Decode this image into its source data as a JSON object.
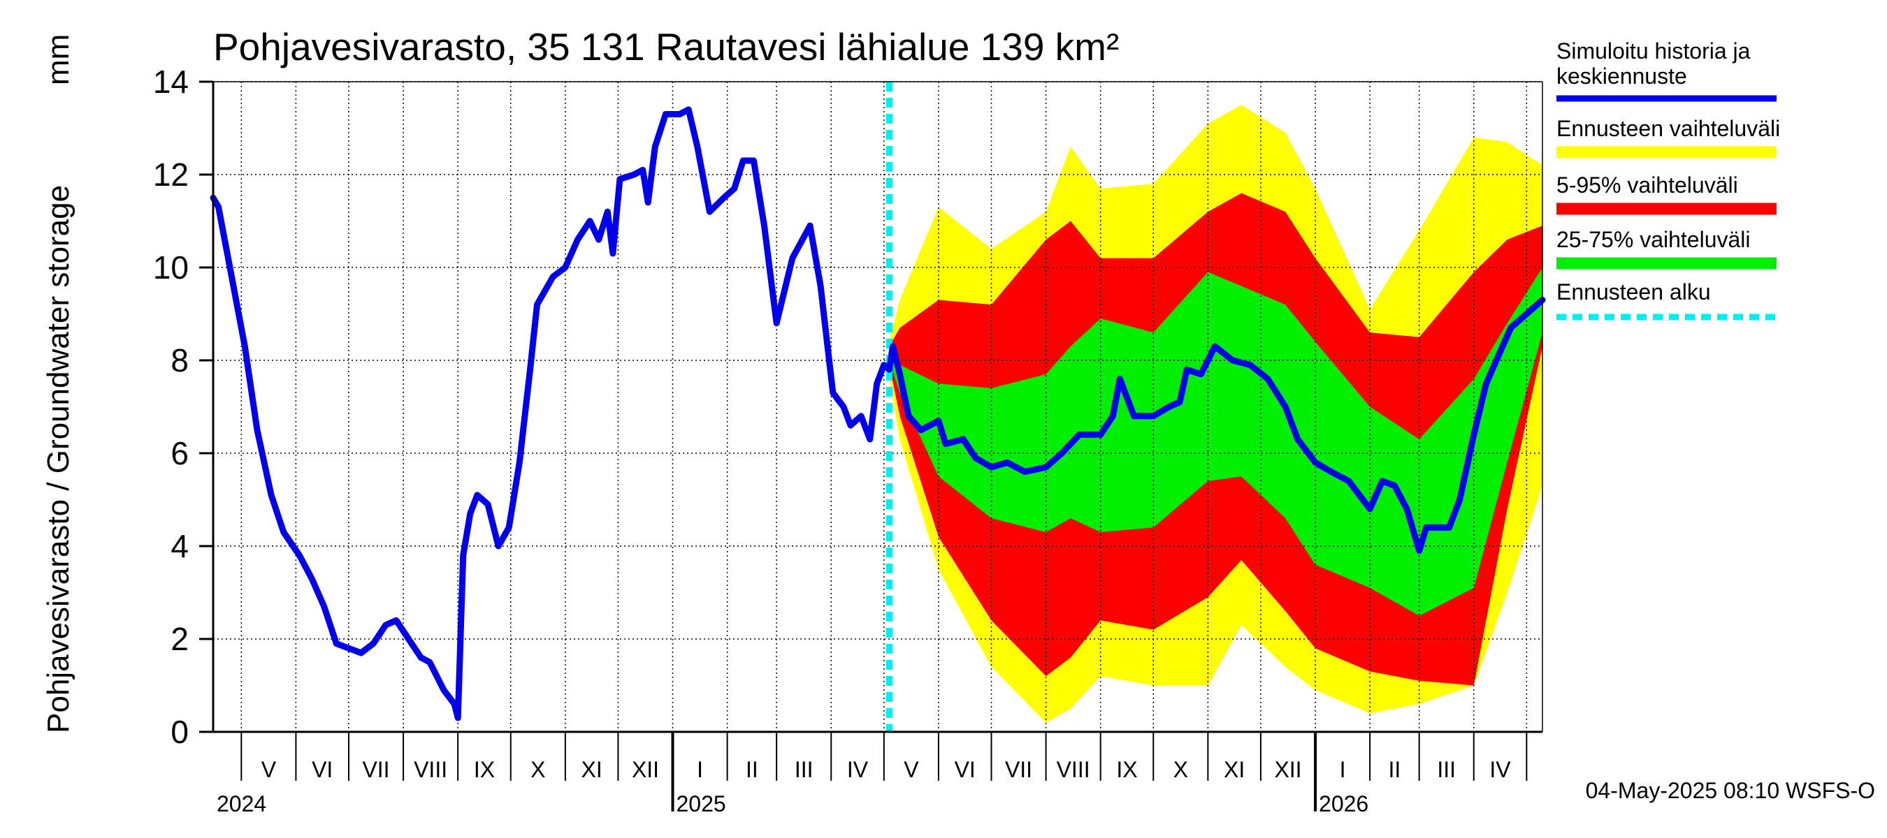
{
  "chart_data": {
    "type": "area",
    "title": "Pohjavesivarasto, 35 131 Rautavesi lähialue 139 km²",
    "ylabel": "Pohjavesivarasto / Groundwater storage",
    "yunit": "mm",
    "ylim": [
      0,
      14
    ],
    "yticks": [
      "0",
      "2",
      "4",
      "6",
      "8",
      "10",
      "12",
      "14"
    ],
    "x_start": "2024-04-15",
    "x_end": "2026-05-10",
    "grid": true,
    "months": [
      {
        "label": "V",
        "start": "2024-05-01"
      },
      {
        "label": "VI",
        "start": "2024-06-01"
      },
      {
        "label": "VII",
        "start": "2024-07-01"
      },
      {
        "label": "VIII",
        "start": "2024-08-01"
      },
      {
        "label": "IX",
        "start": "2024-09-01"
      },
      {
        "label": "X",
        "start": "2024-10-01"
      },
      {
        "label": "XI",
        "start": "2024-11-01"
      },
      {
        "label": "XII",
        "start": "2024-12-01"
      },
      {
        "label": "I",
        "start": "2025-01-01"
      },
      {
        "label": "II",
        "start": "2025-02-01"
      },
      {
        "label": "III",
        "start": "2025-03-01"
      },
      {
        "label": "IV",
        "start": "2025-04-01"
      },
      {
        "label": "V",
        "start": "2025-05-01"
      },
      {
        "label": "VI",
        "start": "2025-06-01"
      },
      {
        "label": "VII",
        "start": "2025-07-01"
      },
      {
        "label": "VIII",
        "start": "2025-08-01"
      },
      {
        "label": "IX",
        "start": "2025-09-01"
      },
      {
        "label": "X",
        "start": "2025-10-01"
      },
      {
        "label": "XI",
        "start": "2025-11-01"
      },
      {
        "label": "XII",
        "start": "2025-12-01"
      },
      {
        "label": "I",
        "start": "2026-01-01"
      },
      {
        "label": "II",
        "start": "2026-02-01"
      },
      {
        "label": "III",
        "start": "2026-03-01"
      },
      {
        "label": "IV",
        "start": "2026-04-01"
      },
      {
        "label": "",
        "start": "2026-05-01"
      }
    ],
    "years": [
      {
        "label": "2024",
        "date": "2024-04-15"
      },
      {
        "label": "2025",
        "date": "2025-01-01"
      },
      {
        "label": "2026",
        "date": "2026-01-01"
      }
    ],
    "forecast_start": "2025-05-04",
    "legend_position": "right",
    "legend": [
      {
        "label": "Simuloitu historia ja keskiennuste",
        "color": "#0000ee",
        "style": "line"
      },
      {
        "label": "Ennusteen vaihteluväli",
        "color": "#ffff00",
        "style": "band"
      },
      {
        "label": "5-95% vaihteluväli",
        "color": "#ff0000",
        "style": "band"
      },
      {
        "label": "25-75% vaihteluväli",
        "color": "#00ee00",
        "style": "band"
      },
      {
        "label": "Ennusteen alku",
        "color": "#00eeee",
        "style": "dashed"
      }
    ],
    "series": [
      {
        "name": "Simuloitu historia ja keskiennuste",
        "color": "#0000ee",
        "points": [
          [
            "2024-04-15",
            11.5
          ],
          [
            "2024-04-18",
            11.3
          ],
          [
            "2024-04-25",
            9.9
          ],
          [
            "2024-05-03",
            8.3
          ],
          [
            "2024-05-10",
            6.5
          ],
          [
            "2024-05-18",
            5.1
          ],
          [
            "2024-05-25",
            4.3
          ],
          [
            "2024-06-03",
            3.8
          ],
          [
            "2024-06-10",
            3.3
          ],
          [
            "2024-06-17",
            2.7
          ],
          [
            "2024-06-24",
            1.9
          ],
          [
            "2024-07-01",
            1.8
          ],
          [
            "2024-07-08",
            1.7
          ],
          [
            "2024-07-15",
            1.9
          ],
          [
            "2024-07-22",
            2.3
          ],
          [
            "2024-07-28",
            2.4
          ],
          [
            "2024-08-04",
            2.0
          ],
          [
            "2024-08-11",
            1.6
          ],
          [
            "2024-08-16",
            1.5
          ],
          [
            "2024-08-24",
            0.9
          ],
          [
            "2024-08-30",
            0.6
          ],
          [
            "2024-09-01",
            0.3
          ],
          [
            "2024-09-04",
            3.8
          ],
          [
            "2024-09-08",
            4.7
          ],
          [
            "2024-09-12",
            5.1
          ],
          [
            "2024-09-18",
            4.9
          ],
          [
            "2024-09-24",
            4.0
          ],
          [
            "2024-09-30",
            4.4
          ],
          [
            "2024-10-06",
            5.8
          ],
          [
            "2024-10-12",
            7.8
          ],
          [
            "2024-10-16",
            9.2
          ],
          [
            "2024-10-25",
            9.8
          ],
          [
            "2024-11-01",
            10.0
          ],
          [
            "2024-11-08",
            10.6
          ],
          [
            "2024-11-15",
            11.0
          ],
          [
            "2024-11-20",
            10.6
          ],
          [
            "2024-11-25",
            11.2
          ],
          [
            "2024-11-28",
            10.3
          ],
          [
            "2024-12-02",
            11.9
          ],
          [
            "2024-12-10",
            12.0
          ],
          [
            "2024-12-15",
            12.1
          ],
          [
            "2024-12-18",
            11.4
          ],
          [
            "2024-12-22",
            12.6
          ],
          [
            "2024-12-28",
            13.3
          ],
          [
            "2025-01-05",
            13.3
          ],
          [
            "2025-01-10",
            13.4
          ],
          [
            "2025-01-15",
            12.6
          ],
          [
            "2025-01-22",
            11.2
          ],
          [
            "2025-01-30",
            11.5
          ],
          [
            "2025-02-05",
            11.7
          ],
          [
            "2025-02-10",
            12.3
          ],
          [
            "2025-02-16",
            12.3
          ],
          [
            "2025-02-22",
            10.9
          ],
          [
            "2025-03-01",
            8.8
          ],
          [
            "2025-03-10",
            10.2
          ],
          [
            "2025-03-20",
            10.9
          ],
          [
            "2025-03-26",
            9.6
          ],
          [
            "2025-04-02",
            7.3
          ],
          [
            "2025-04-08",
            7.0
          ],
          [
            "2025-04-12",
            6.6
          ],
          [
            "2025-04-18",
            6.8
          ],
          [
            "2025-04-23",
            6.3
          ],
          [
            "2025-04-27",
            7.5
          ],
          [
            "2025-05-01",
            7.9
          ],
          [
            "2025-05-04",
            7.8
          ],
          [
            "2025-05-06",
            8.3
          ],
          [
            "2025-05-10",
            7.7
          ],
          [
            "2025-05-15",
            6.8
          ],
          [
            "2025-05-22",
            6.5
          ],
          [
            "2025-06-01",
            6.7
          ],
          [
            "2025-06-05",
            6.2
          ],
          [
            "2025-06-15",
            6.3
          ],
          [
            "2025-06-22",
            5.9
          ],
          [
            "2025-07-01",
            5.7
          ],
          [
            "2025-07-10",
            5.8
          ],
          [
            "2025-07-20",
            5.6
          ],
          [
            "2025-08-01",
            5.7
          ],
          [
            "2025-08-10",
            6.0
          ],
          [
            "2025-08-20",
            6.4
          ],
          [
            "2025-09-01",
            6.4
          ],
          [
            "2025-09-08",
            6.8
          ],
          [
            "2025-09-12",
            7.6
          ],
          [
            "2025-09-20",
            6.8
          ],
          [
            "2025-10-01",
            6.8
          ],
          [
            "2025-10-10",
            7.0
          ],
          [
            "2025-10-16",
            7.1
          ],
          [
            "2025-10-20",
            7.8
          ],
          [
            "2025-10-28",
            7.7
          ],
          [
            "2025-11-05",
            8.3
          ],
          [
            "2025-11-15",
            8.0
          ],
          [
            "2025-11-25",
            7.9
          ],
          [
            "2025-12-05",
            7.6
          ],
          [
            "2025-12-15",
            7.0
          ],
          [
            "2025-12-22",
            6.3
          ],
          [
            "2026-01-01",
            5.8
          ],
          [
            "2026-01-10",
            5.6
          ],
          [
            "2026-01-20",
            5.4
          ],
          [
            "2026-01-28",
            5.0
          ],
          [
            "2026-02-01",
            4.8
          ],
          [
            "2026-02-08",
            5.4
          ],
          [
            "2026-02-15",
            5.3
          ],
          [
            "2026-02-22",
            4.8
          ],
          [
            "2026-03-01",
            3.9
          ],
          [
            "2026-03-05",
            4.4
          ],
          [
            "2026-03-12",
            4.4
          ],
          [
            "2026-03-18",
            4.4
          ],
          [
            "2026-03-24",
            5.0
          ],
          [
            "2026-04-01",
            6.4
          ],
          [
            "2026-04-08",
            7.5
          ],
          [
            "2026-04-15",
            8.1
          ],
          [
            "2026-04-22",
            8.7
          ],
          [
            "2026-05-01",
            9.0
          ],
          [
            "2026-05-10",
            9.3
          ]
        ]
      }
    ],
    "bands": [
      {
        "name": "Ennusteen vaihteluväli",
        "color": "#ffff00",
        "x": [
          "2025-05-04",
          "2025-05-10",
          "2025-06-01",
          "2025-07-01",
          "2025-08-01",
          "2025-08-15",
          "2025-09-01",
          "2025-10-01",
          "2025-11-01",
          "2025-11-20",
          "2025-12-15",
          "2026-01-01",
          "2026-02-01",
          "2026-03-01",
          "2026-04-01",
          "2026-04-20",
          "2026-05-10"
        ],
        "upper": [
          8.4,
          9.3,
          11.3,
          10.4,
          11.2,
          12.6,
          11.7,
          11.8,
          13.1,
          13.5,
          12.9,
          11.7,
          9.1,
          10.8,
          12.8,
          12.7,
          12.2
        ],
        "lower": [
          7.6,
          6.3,
          3.5,
          1.4,
          0.2,
          0.5,
          1.2,
          1.0,
          1.0,
          2.3,
          1.4,
          0.9,
          0.4,
          0.6,
          1.0,
          3.0,
          5.3
        ]
      },
      {
        "name": "5-95% vaihteluväli",
        "color": "#ff0000",
        "x": [
          "2025-05-04",
          "2025-05-10",
          "2025-06-01",
          "2025-07-01",
          "2025-08-01",
          "2025-08-15",
          "2025-09-01",
          "2025-10-01",
          "2025-11-01",
          "2025-11-20",
          "2025-12-15",
          "2026-01-01",
          "2026-02-01",
          "2026-03-01",
          "2026-04-01",
          "2026-04-20",
          "2026-05-10"
        ],
        "upper": [
          8.3,
          8.7,
          9.3,
          9.2,
          10.6,
          11.0,
          10.2,
          10.2,
          11.2,
          11.6,
          11.2,
          10.2,
          8.6,
          8.5,
          9.9,
          10.6,
          10.9
        ],
        "lower": [
          7.9,
          6.8,
          4.2,
          2.4,
          1.2,
          1.6,
          2.4,
          2.2,
          2.9,
          3.7,
          2.6,
          1.8,
          1.3,
          1.1,
          1.0,
          4.8,
          8.3
        ]
      },
      {
        "name": "25-75% vaihteluväli",
        "color": "#00ee00",
        "x": [
          "2025-05-04",
          "2025-05-10",
          "2025-06-01",
          "2025-07-01",
          "2025-08-01",
          "2025-08-15",
          "2025-09-01",
          "2025-10-01",
          "2025-11-01",
          "2025-11-20",
          "2025-12-15",
          "2026-01-01",
          "2026-02-01",
          "2026-03-01",
          "2026-04-01",
          "2026-04-20",
          "2026-05-10"
        ],
        "upper": [
          8.2,
          7.9,
          7.5,
          7.4,
          7.7,
          8.3,
          8.9,
          8.6,
          9.9,
          9.6,
          9.2,
          8.4,
          7.0,
          6.3,
          7.6,
          8.8,
          10.0
        ],
        "lower": [
          8.0,
          7.3,
          5.5,
          4.6,
          4.3,
          4.6,
          4.3,
          4.4,
          5.4,
          5.5,
          4.6,
          3.6,
          3.1,
          2.5,
          3.1,
          5.8,
          8.6
        ]
      }
    ],
    "footer_timestamp": "04-May-2025 08:10 WSFS-O"
  }
}
